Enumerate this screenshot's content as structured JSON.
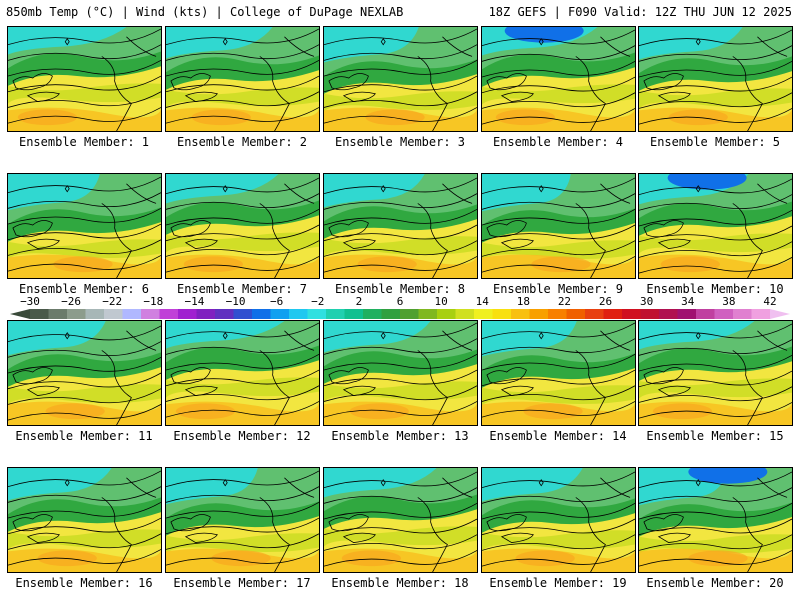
{
  "header": {
    "left": "850mb Temp (°C) | Wind (kts) | College of DuPage NEXLAB",
    "right": "18Z GEFS | F090 Valid: 12Z THU JUN 12 2025"
  },
  "panels": [
    {
      "label": "Ensemble Member: 1"
    },
    {
      "label": "Ensemble Member: 2"
    },
    {
      "label": "Ensemble Member: 3"
    },
    {
      "label": "Ensemble Member: 4"
    },
    {
      "label": "Ensemble Member: 5"
    },
    {
      "label": "Ensemble Member: 6"
    },
    {
      "label": "Ensemble Member: 7"
    },
    {
      "label": "Ensemble Member: 8"
    },
    {
      "label": "Ensemble Member: 9"
    },
    {
      "label": "Ensemble Member: 10"
    },
    {
      "label": "Ensemble Member: 11"
    },
    {
      "label": "Ensemble Member: 12"
    },
    {
      "label": "Ensemble Member: 13"
    },
    {
      "label": "Ensemble Member: 14"
    },
    {
      "label": "Ensemble Member: 15"
    },
    {
      "label": "Ensemble Member: 16"
    },
    {
      "label": "Ensemble Member: 17"
    },
    {
      "label": "Ensemble Member: 18"
    },
    {
      "label": "Ensemble Member: 19"
    },
    {
      "label": "Ensemble Member: 20"
    }
  ],
  "colorbar": {
    "ticks": [
      "-30",
      "-26",
      "-22",
      "-18",
      "-14",
      "-10",
      "-6",
      "-2",
      "2",
      "6",
      "10",
      "14",
      "18",
      "22",
      "26",
      "30",
      "34",
      "38",
      "42"
    ],
    "colors": [
      "#4a5a4a",
      "#6b7b6b",
      "#8c9c8c",
      "#a7b7b7",
      "#c0c8d0",
      "#b0b8ff",
      "#d080e0",
      "#c040d8",
      "#a020d0",
      "#8020c0",
      "#6030c0",
      "#3050d0",
      "#1070e8",
      "#10a0f0",
      "#20c8f0",
      "#30e0e0",
      "#20d0b0",
      "#10c090",
      "#20b060",
      "#30a040",
      "#50a030",
      "#80b820",
      "#a8d010",
      "#d0e020",
      "#f0f020",
      "#f8e010",
      "#f8c010",
      "#f8a000",
      "#f88000",
      "#f06000",
      "#e84010",
      "#e02010",
      "#d01020",
      "#c01030",
      "#b01050",
      "#a01070",
      "#c040a0",
      "#d060c0",
      "#e080d0",
      "#f0a0e0"
    ]
  }
}
